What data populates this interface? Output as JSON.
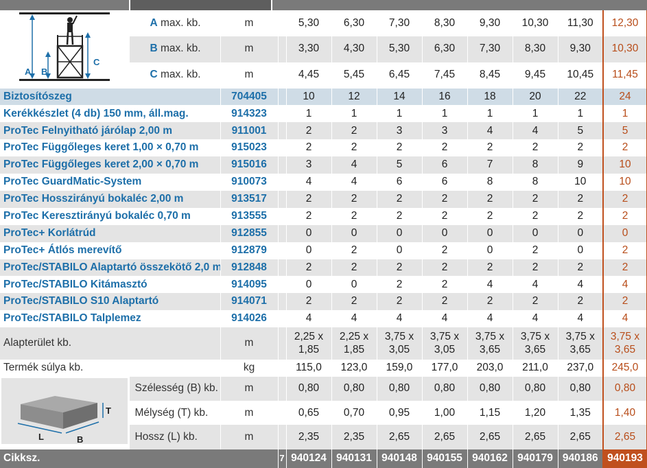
{
  "height_rows": [
    {
      "letter": "A",
      "label": "max. kb.",
      "unit": "m",
      "values": [
        "5,30",
        "6,30",
        "7,30",
        "8,30",
        "9,30",
        "10,30",
        "11,30",
        "12,30"
      ]
    },
    {
      "letter": "B",
      "label": "max. kb.",
      "unit": "m",
      "values": [
        "3,30",
        "4,30",
        "5,30",
        "6,30",
        "7,30",
        "8,30",
        "9,30",
        "10,30"
      ]
    },
    {
      "letter": "C",
      "label": "max. kb.",
      "unit": "m",
      "values": [
        "4,45",
        "5,45",
        "6,45",
        "7,45",
        "8,45",
        "9,45",
        "10,45",
        "11,45"
      ]
    }
  ],
  "scaffold_labels": {
    "a": "A",
    "b": "B",
    "c": "C"
  },
  "components": [
    {
      "name": "Biztosítószeg",
      "code": "704405",
      "values": [
        "10",
        "12",
        "14",
        "16",
        "18",
        "20",
        "22",
        "24"
      ]
    },
    {
      "name": "Kerékkészlet (4 db) 150 mm, áll.mag.",
      "code": "914323",
      "values": [
        "1",
        "1",
        "1",
        "1",
        "1",
        "1",
        "1",
        "1"
      ]
    },
    {
      "name": "ProTec Felnyitható járólap 2,00 m",
      "code": "911001",
      "values": [
        "2",
        "2",
        "3",
        "3",
        "4",
        "4",
        "5",
        "5"
      ]
    },
    {
      "name": "ProTec Függőleges keret 1,00 × 0,70 m",
      "code": "915023",
      "values": [
        "2",
        "2",
        "2",
        "2",
        "2",
        "2",
        "2",
        "2"
      ]
    },
    {
      "name": "ProTec Függőleges keret 2,00 × 0,70 m",
      "code": "915016",
      "values": [
        "3",
        "4",
        "5",
        "6",
        "7",
        "8",
        "9",
        "10"
      ]
    },
    {
      "name": "ProTec GuardMatic-System",
      "code": "910073",
      "values": [
        "4",
        "4",
        "6",
        "6",
        "8",
        "8",
        "10",
        "10"
      ]
    },
    {
      "name": "ProTec Hosszirányú bokaléc 2,00 m",
      "code": "913517",
      "values": [
        "2",
        "2",
        "2",
        "2",
        "2",
        "2",
        "2",
        "2"
      ]
    },
    {
      "name": "ProTec Keresztirányú bokaléc 0,70 m",
      "code": "913555",
      "values": [
        "2",
        "2",
        "2",
        "2",
        "2",
        "2",
        "2",
        "2"
      ]
    },
    {
      "name": "ProTec+ Korlátrúd",
      "code": "912855",
      "values": [
        "0",
        "0",
        "0",
        "0",
        "0",
        "0",
        "0",
        "0"
      ]
    },
    {
      "name": "ProTec+ Átlós merevítő",
      "code": "912879",
      "values": [
        "0",
        "2",
        "0",
        "2",
        "0",
        "2",
        "0",
        "2"
      ]
    },
    {
      "name": "ProTec/STABILO Alaptartó összekötő 2,0 m",
      "code": "912848",
      "values": [
        "2",
        "2",
        "2",
        "2",
        "2",
        "2",
        "2",
        "2"
      ]
    },
    {
      "name": "ProTec/STABILO Kitámasztó",
      "code": "914095",
      "values": [
        "0",
        "0",
        "2",
        "2",
        "4",
        "4",
        "4",
        "4"
      ]
    },
    {
      "name": "ProTec/STABILO S10 Alaptartó",
      "code": "914071",
      "values": [
        "2",
        "2",
        "2",
        "2",
        "2",
        "2",
        "2",
        "2"
      ]
    },
    {
      "name": "ProTec/STABILO Talplemez",
      "code": "914026",
      "values": [
        "4",
        "4",
        "4",
        "4",
        "4",
        "4",
        "4",
        "4"
      ]
    }
  ],
  "area": {
    "label": "Alapterület kb.",
    "unit": "m",
    "values": [
      [
        "2,25 x",
        "1,85"
      ],
      [
        "2,25 x",
        "1,85"
      ],
      [
        "3,75 x",
        "3,05"
      ],
      [
        "3,75 x",
        "3,05"
      ],
      [
        "3,75 x",
        "3,65"
      ],
      [
        "3,75 x",
        "3,65"
      ],
      [
        "3,75 x",
        "3,65"
      ],
      [
        "3,75 x",
        "3,65"
      ]
    ]
  },
  "weight": {
    "label": "Termék súlya kb.",
    "unit": "kg",
    "values": [
      "115,0",
      "123,0",
      "159,0",
      "177,0",
      "203,0",
      "211,0",
      "237,0",
      "245,0"
    ]
  },
  "package_labels": {
    "t": "T",
    "l": "L",
    "b": "B"
  },
  "dims": [
    {
      "label": "Szélesség (B) kb.",
      "unit": "m",
      "values": [
        "0,80",
        "0,80",
        "0,80",
        "0,80",
        "0,80",
        "0,80",
        "0,80",
        "0,80"
      ]
    },
    {
      "label": "Mélység (T) kb.",
      "unit": "m",
      "values": [
        "0,65",
        "0,70",
        "0,95",
        "1,00",
        "1,15",
        "1,20",
        "1,35",
        "1,40"
      ]
    },
    {
      "label": "Hossz (L) kb.",
      "unit": "m",
      "values": [
        "2,35",
        "2,35",
        "2,65",
        "2,65",
        "2,65",
        "2,65",
        "2,65",
        "2,65"
      ]
    }
  ],
  "footer": {
    "label": "Cikksz.",
    "partial": "7",
    "codes": [
      "940124",
      "940131",
      "940148",
      "940155",
      "940162",
      "940179",
      "940186",
      "940193"
    ]
  }
}
